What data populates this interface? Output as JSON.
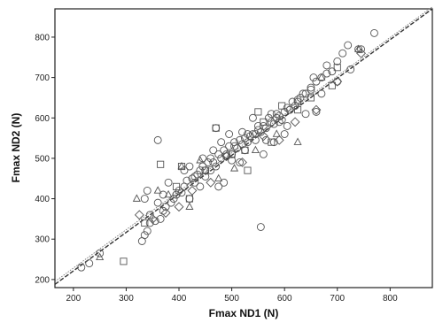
{
  "chart_data": {
    "type": "scatter",
    "title": "",
    "xlabel": "Fmax ND1 (N)",
    "ylabel": "Fmax ND2 (N)",
    "xlim": [
      165,
      880
    ],
    "ylim": [
      180,
      870
    ],
    "xticks": [
      200,
      300,
      400,
      500,
      600,
      700,
      800
    ],
    "yticks": [
      200,
      300,
      400,
      500,
      600,
      700,
      800
    ],
    "grid": false,
    "legend": "none",
    "series": [
      {
        "marker": "circle",
        "x": [
          215,
          230,
          250,
          330,
          335,
          340,
          345,
          355,
          365,
          370,
          375,
          385,
          390,
          395,
          400,
          405,
          410,
          415,
          420,
          425,
          430,
          435,
          440,
          445,
          450,
          455,
          460,
          465,
          470,
          475,
          480,
          485,
          490,
          495,
          500,
          505,
          510,
          515,
          520,
          525,
          530,
          535,
          540,
          545,
          550,
          555,
          560,
          565,
          570,
          575,
          580,
          585,
          590,
          595,
          600,
          605,
          610,
          615,
          620,
          625,
          630,
          640,
          650,
          660,
          670,
          680,
          690,
          700,
          710,
          720,
          740,
          770,
          340,
          360,
          380,
          420,
          450,
          470,
          500,
          520,
          540,
          560,
          580,
          600,
          640,
          660,
          475,
          485,
          370,
          555,
          335,
          345,
          410,
          430,
          445,
          465,
          480,
          495,
          515,
          530,
          550,
          575,
          590,
          610,
          635,
          655,
          680,
          700,
          725,
          745,
          360,
          395,
          440,
          460,
          490,
          505,
          525,
          545,
          565,
          585,
          605,
          625,
          650,
          670
        ],
        "y": [
          230,
          240,
          265,
          295,
          310,
          320,
          340,
          345,
          350,
          370,
          380,
          390,
          400,
          410,
          420,
          415,
          430,
          445,
          400,
          450,
          440,
          460,
          470,
          480,
          470,
          490,
          500,
          490,
          480,
          510,
          500,
          520,
          505,
          530,
          510,
          530,
          525,
          545,
          535,
          550,
          540,
          555,
          560,
          545,
          570,
          565,
          580,
          575,
          600,
          590,
          585,
          610,
          605,
          595,
          615,
          625,
          620,
          640,
          630,
          645,
          650,
          660,
          675,
          690,
          700,
          710,
          715,
          740,
          760,
          780,
          770,
          810,
          420,
          545,
          440,
          480,
          455,
          575,
          495,
          565,
          600,
          510,
          540,
          560,
          610,
          615,
          430,
          440,
          410,
          330,
          400,
          360,
          470,
          455,
          500,
          520,
          540,
          560,
          490,
          560,
          580,
          610,
          590,
          620,
          660,
          700,
          730,
          690,
          720,
          770,
          390,
          410,
          430,
          470,
          510,
          540,
          520,
          560,
          545,
          600,
          580,
          640,
          670,
          660
        ]
      },
      {
        "marker": "square",
        "x": [
          295,
          335,
          365,
          395,
          420,
          450,
          470,
          500,
          525,
          550,
          575,
          595,
          625,
          650,
          690,
          700,
          530,
          560,
          405
        ],
        "y": [
          245,
          340,
          485,
          430,
          400,
          470,
          575,
          510,
          520,
          615,
          540,
          630,
          620,
          650,
          680,
          725,
          470,
          590,
          480
        ]
      },
      {
        "marker": "diamond",
        "x": [
          325,
          350,
          375,
          400,
          425,
          460,
          490,
          520,
          560,
          590,
          620,
          660,
          700,
          745
        ],
        "y": [
          360,
          350,
          365,
          380,
          420,
          440,
          505,
          490,
          555,
          545,
          590,
          620,
          690,
          760
        ]
      },
      {
        "marker": "triangle",
        "x": [
          250,
          320,
          360,
          380,
          405,
          420,
          440,
          475,
          505,
          545,
          585,
          625,
          670,
          740
        ],
        "y": [
          255,
          400,
          420,
          410,
          480,
          380,
          495,
          450,
          475,
          520,
          560,
          540,
          700,
          770
        ]
      }
    ],
    "reference_lines": [
      {
        "kind": "fit",
        "x": [
          165,
          880
        ],
        "y": [
          188,
          870
        ]
      },
      {
        "kind": "identity",
        "x": [
          165,
          880
        ],
        "y": [
          195,
          875
        ]
      }
    ]
  }
}
